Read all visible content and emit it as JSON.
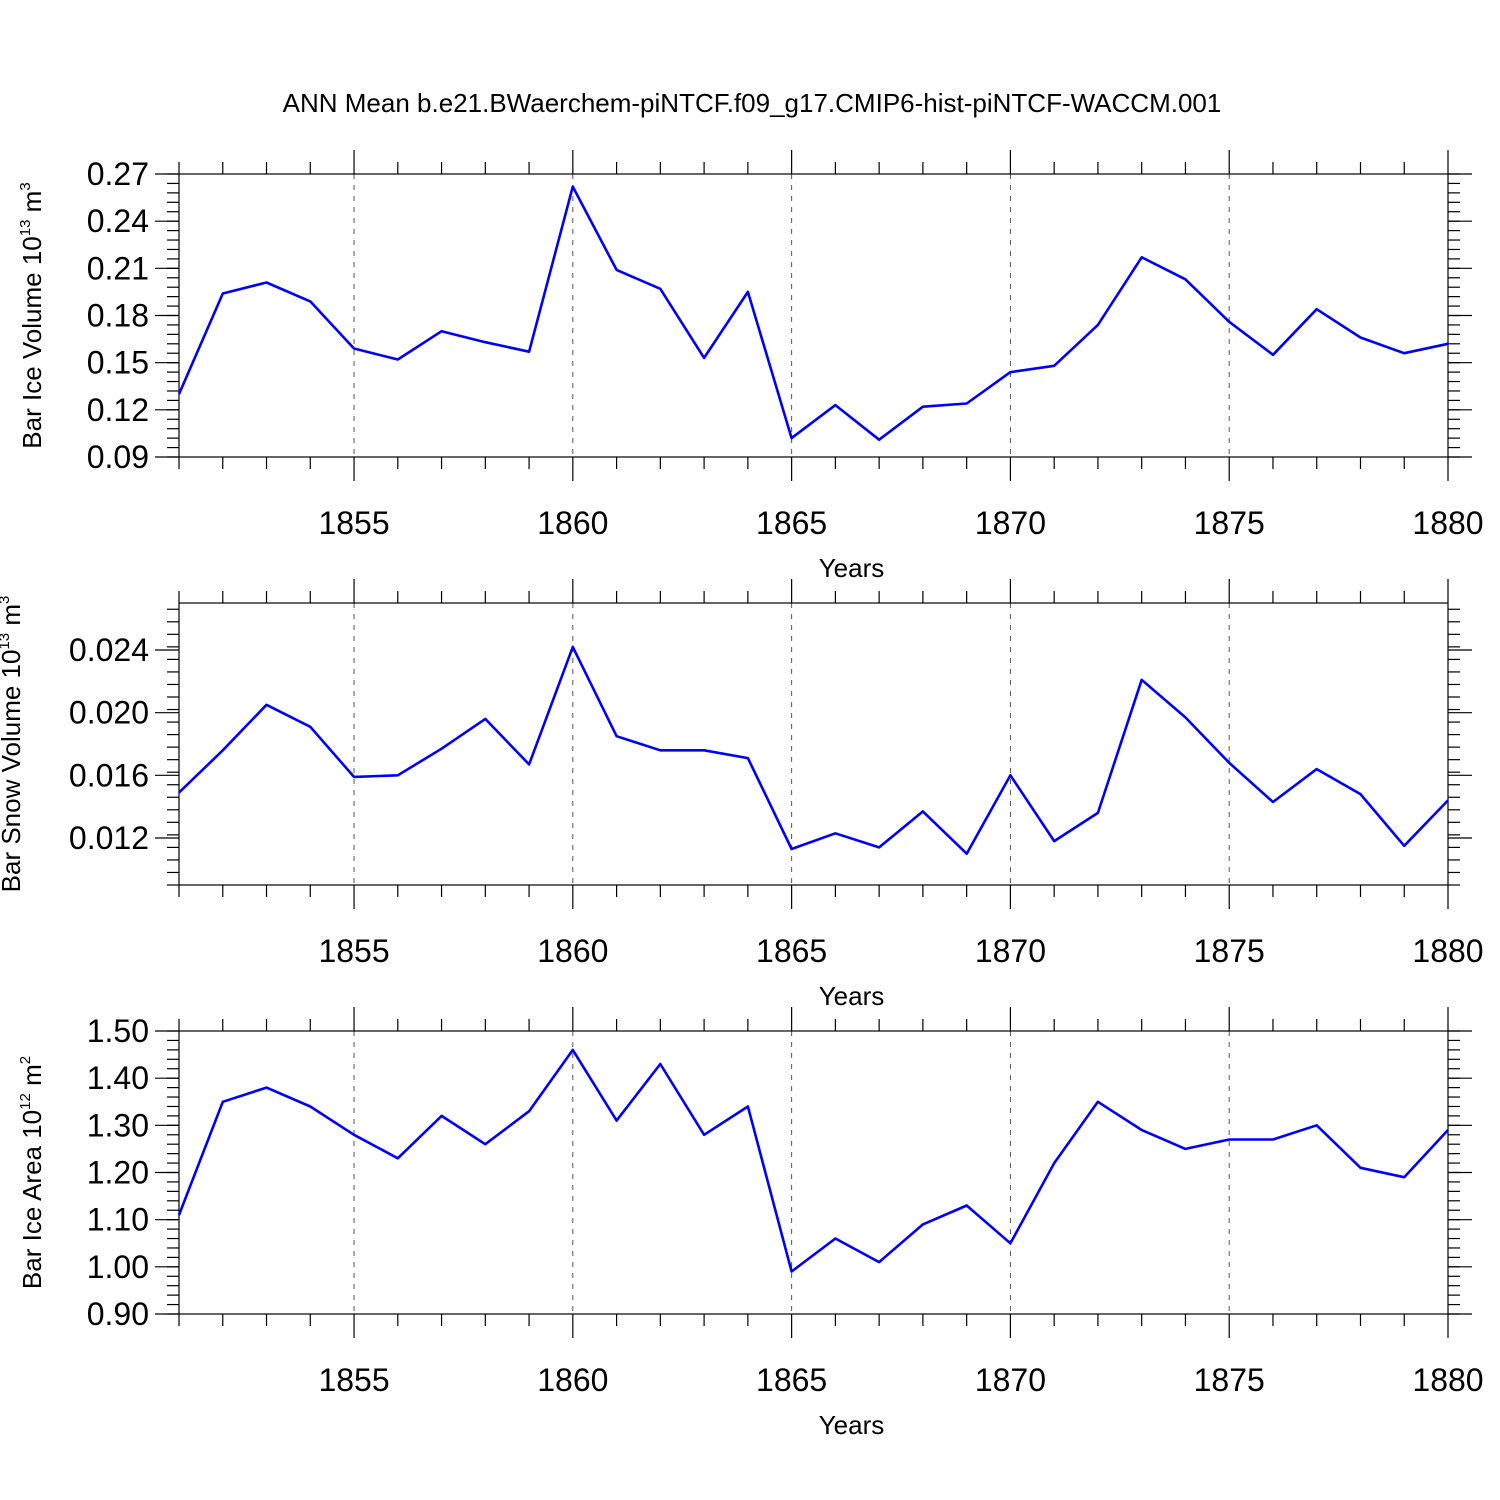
{
  "title": "ANN Mean b.e21.BWaerchem-piNTCF.f09_g17.CMIP6-hist-piNTCF-WACCM.001",
  "colors": {
    "line": "#0000ff",
    "grid": "#555555",
    "frame": "#000000"
  },
  "chart_data": [
    {
      "type": "line",
      "ylabel": "Bar Ice Volume 10",
      "ylabel_exp": "13",
      "ylabel_unit": " m",
      "ylabel_unit_exp": "3",
      "xlabel": "Years",
      "xlim": [
        1851,
        1880
      ],
      "ylim": [
        0.09,
        0.27
      ],
      "yticks": [
        "0.09",
        "0.12",
        "0.15",
        "0.18",
        "0.21",
        "0.24",
        "0.27"
      ],
      "xticks": [
        "1855",
        "1860",
        "1865",
        "1870",
        "1875",
        "1880"
      ],
      "grid": "vertical dashed at major x ticks",
      "x": [
        1851,
        1852,
        1853,
        1854,
        1855,
        1856,
        1857,
        1858,
        1859,
        1860,
        1861,
        1862,
        1863,
        1864,
        1865,
        1866,
        1867,
        1868,
        1869,
        1870,
        1871,
        1872,
        1873,
        1874,
        1875,
        1876,
        1877,
        1878,
        1879,
        1880
      ],
      "values": [
        0.13,
        0.194,
        0.201,
        0.189,
        0.159,
        0.152,
        0.17,
        0.163,
        0.157,
        0.262,
        0.209,
        0.197,
        0.153,
        0.195,
        0.102,
        0.123,
        0.101,
        0.122,
        0.124,
        0.144,
        0.148,
        0.174,
        0.217,
        0.203,
        0.176,
        0.155,
        0.184,
        0.166,
        0.156,
        0.162
      ]
    },
    {
      "type": "line",
      "ylabel": "Bar Snow Volume 10",
      "ylabel_exp": "13",
      "ylabel_unit": " m",
      "ylabel_unit_exp": "3",
      "xlabel": "Years",
      "xlim": [
        1851,
        1880
      ],
      "ylim": [
        0.009,
        0.027
      ],
      "yticks": [
        "0.012",
        "0.016",
        "0.020",
        "0.024"
      ],
      "xticks": [
        "1855",
        "1860",
        "1865",
        "1870",
        "1875",
        "1880"
      ],
      "grid": "vertical dashed at major x ticks",
      "x": [
        1851,
        1852,
        1853,
        1854,
        1855,
        1856,
        1857,
        1858,
        1859,
        1860,
        1861,
        1862,
        1863,
        1864,
        1865,
        1866,
        1867,
        1868,
        1869,
        1870,
        1871,
        1872,
        1873,
        1874,
        1875,
        1876,
        1877,
        1878,
        1879,
        1880
      ],
      "values": [
        0.0149,
        0.0176,
        0.0205,
        0.0191,
        0.0159,
        0.016,
        0.0177,
        0.0196,
        0.0167,
        0.0242,
        0.0185,
        0.0176,
        0.0176,
        0.0171,
        0.0113,
        0.0123,
        0.0114,
        0.0137,
        0.011,
        0.016,
        0.0118,
        0.0136,
        0.0221,
        0.0197,
        0.0168,
        0.0143,
        0.0164,
        0.0148,
        0.0115,
        0.0144
      ]
    },
    {
      "type": "line",
      "ylabel": "Bar Ice Area 10",
      "ylabel_exp": "12",
      "ylabel_unit": " m",
      "ylabel_unit_exp": "2",
      "xlabel": "Years",
      "xlim": [
        1851,
        1880
      ],
      "ylim": [
        0.9,
        1.5
      ],
      "yticks": [
        "0.90",
        "1.00",
        "1.10",
        "1.20",
        "1.30",
        "1.40",
        "1.50"
      ],
      "xticks": [
        "1855",
        "1860",
        "1865",
        "1870",
        "1875",
        "1880"
      ],
      "grid": "vertical dashed at major x ticks",
      "x": [
        1851,
        1852,
        1853,
        1854,
        1855,
        1856,
        1857,
        1858,
        1859,
        1860,
        1861,
        1862,
        1863,
        1864,
        1865,
        1866,
        1867,
        1868,
        1869,
        1870,
        1871,
        1872,
        1873,
        1874,
        1875,
        1876,
        1877,
        1878,
        1879,
        1880
      ],
      "values": [
        1.11,
        1.35,
        1.38,
        1.34,
        1.28,
        1.23,
        1.32,
        1.26,
        1.33,
        1.46,
        1.31,
        1.43,
        1.28,
        1.34,
        0.99,
        1.06,
        1.01,
        1.09,
        1.13,
        1.05,
        1.22,
        1.35,
        1.29,
        1.25,
        1.27,
        1.27,
        1.3,
        1.21,
        1.19,
        1.29
      ]
    }
  ]
}
